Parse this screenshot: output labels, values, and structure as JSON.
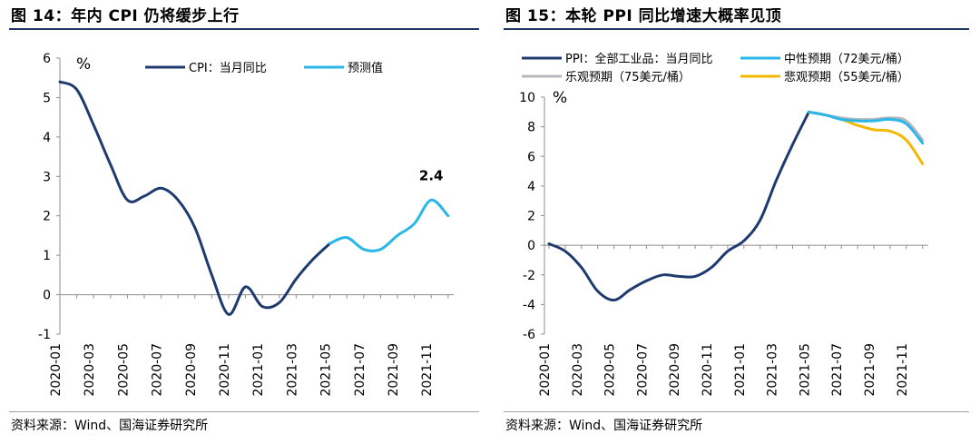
{
  "left": {
    "title": "图 14：年内 CPI 仍将缓步上行",
    "source": "资料来源：Wind、国海证券研究所",
    "chart_data": {
      "type": "line",
      "ylabel": "%",
      "ylim": [
        -1,
        6
      ],
      "yticks": [
        -1,
        0,
        1,
        2,
        3,
        4,
        5,
        6
      ],
      "xticks": [
        "2020-01",
        "2020-03",
        "2020-05",
        "2020-07",
        "2020-09",
        "2020-11",
        "2021-01",
        "2021-03",
        "2021-05",
        "2021-07",
        "2021-09",
        "2021-11"
      ],
      "legend_position": "top",
      "series": [
        {
          "name": "CPI：当月同比",
          "color": "#1f3a6e",
          "x": [
            "2020-01",
            "2020-02",
            "2020-03",
            "2020-04",
            "2020-05",
            "2020-06",
            "2020-07",
            "2020-08",
            "2020-09",
            "2020-10",
            "2020-11",
            "2020-12",
            "2021-01",
            "2021-02",
            "2021-03",
            "2021-04",
            "2021-05"
          ],
          "values": [
            5.4,
            5.2,
            4.3,
            3.3,
            2.4,
            2.5,
            2.7,
            2.4,
            1.7,
            0.5,
            -0.5,
            0.2,
            -0.3,
            -0.2,
            0.4,
            0.9,
            1.3
          ]
        },
        {
          "name": "预测值",
          "color": "#29b6e8",
          "x": [
            "2021-05",
            "2021-06",
            "2021-07",
            "2021-08",
            "2021-09",
            "2021-10",
            "2021-11",
            "2021-12"
          ],
          "values": [
            1.3,
            1.45,
            1.15,
            1.15,
            1.5,
            1.8,
            2.4,
            2.0
          ]
        }
      ],
      "annotations": [
        {
          "text": "2.4",
          "x": "2021-11",
          "y": 2.4
        }
      ]
    }
  },
  "right": {
    "title": "图 15：本轮 PPI 同比增速大概率见顶",
    "source": "资料来源：Wind、国海证券研究所",
    "chart_data": {
      "type": "line",
      "ylabel": "%",
      "ylim": [
        -6,
        10
      ],
      "yticks": [
        -6,
        -4,
        -2,
        0,
        2,
        4,
        6,
        8,
        10
      ],
      "xticks": [
        "2020-01",
        "2020-03",
        "2020-05",
        "2020-07",
        "2020-09",
        "2020-11",
        "2021-01",
        "2021-03",
        "2021-05",
        "2021-07",
        "2021-09",
        "2021-11"
      ],
      "legend_position": "top",
      "series": [
        {
          "name": "PPI：全部工业品：当月同比",
          "color": "#1f3a6e",
          "x": [
            "2020-01",
            "2020-02",
            "2020-03",
            "2020-04",
            "2020-05",
            "2020-06",
            "2020-07",
            "2020-08",
            "2020-09",
            "2020-10",
            "2020-11",
            "2020-12",
            "2021-01",
            "2021-02",
            "2021-03",
            "2021-04",
            "2021-05"
          ],
          "values": [
            0.1,
            -0.4,
            -1.5,
            -3.1,
            -3.7,
            -3.0,
            -2.4,
            -2.0,
            -2.1,
            -2.1,
            -1.5,
            -0.4,
            0.3,
            1.7,
            4.4,
            6.8,
            9.0
          ]
        },
        {
          "name": "中性预期（72美元/桶）",
          "color": "#29b6e8",
          "x": [
            "2021-05",
            "2021-06",
            "2021-07",
            "2021-08",
            "2021-09",
            "2021-10",
            "2021-11",
            "2021-12"
          ],
          "values": [
            9.0,
            8.8,
            8.5,
            8.4,
            8.4,
            8.5,
            8.2,
            6.9
          ]
        },
        {
          "name": "乐观预期（75美元/桶）",
          "color": "#b5b8bd",
          "x": [
            "2021-05",
            "2021-06",
            "2021-07",
            "2021-08",
            "2021-09",
            "2021-10",
            "2021-11",
            "2021-12"
          ],
          "values": [
            9.0,
            8.8,
            8.6,
            8.5,
            8.5,
            8.6,
            8.4,
            7.1
          ]
        },
        {
          "name": "悲观预期（55美元/桶）",
          "color": "#f5b800",
          "x": [
            "2021-05",
            "2021-06",
            "2021-07",
            "2021-08",
            "2021-09",
            "2021-10",
            "2021-11",
            "2021-12"
          ],
          "values": [
            9.0,
            8.8,
            8.5,
            8.1,
            7.8,
            7.7,
            7.1,
            5.5
          ]
        }
      ]
    }
  }
}
